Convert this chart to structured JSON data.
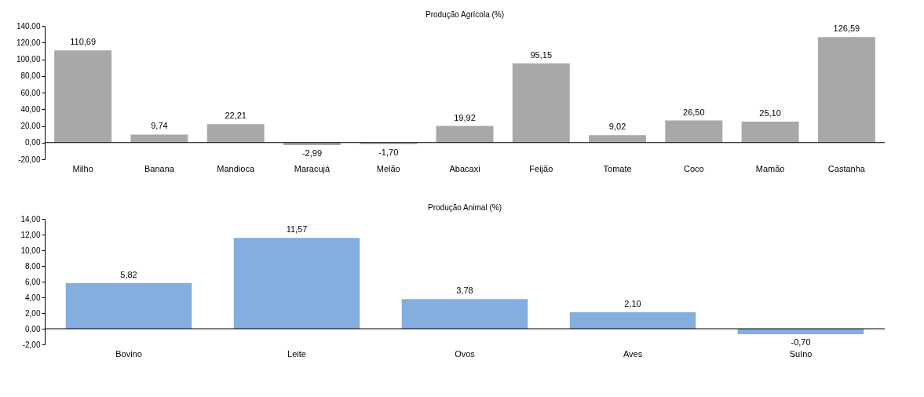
{
  "chart_data": [
    {
      "type": "bar",
      "title": "Produção Agrícola (%)",
      "categories": [
        "Milho",
        "Banana",
        "Mandioca",
        "Maracujá",
        "Melão",
        "Abacaxi",
        "Feijão",
        "Tomate",
        "Coco",
        "Mamão",
        "Castanha"
      ],
      "values": [
        110.69,
        9.74,
        22.21,
        -2.99,
        -1.7,
        19.92,
        95.15,
        9.02,
        26.5,
        25.1,
        126.59
      ],
      "value_labels": [
        "110,69",
        "9,74",
        "22,21",
        "-2,99",
        "-1,70",
        "19,92",
        "95,15",
        "9,02",
        "26,50",
        "25,10",
        "126,59"
      ],
      "color": "#a8a8a8",
      "ylim": [
        -20,
        140
      ],
      "yticks": [
        {
          "value": -20,
          "label": "-20,00"
        },
        {
          "value": 0,
          "label": "0,00"
        },
        {
          "value": 20,
          "label": "20,00"
        },
        {
          "value": 40,
          "label": "40,00"
        },
        {
          "value": 60,
          "label": "60,00"
        },
        {
          "value": 80,
          "label": "80,00"
        },
        {
          "value": 100,
          "label": "100,00"
        },
        {
          "value": 120,
          "label": "120,00"
        },
        {
          "value": 140,
          "label": "140,00"
        }
      ],
      "grid": false
    },
    {
      "type": "bar",
      "title": "Produção Animal (%)",
      "categories": [
        "Bovino",
        "Leite",
        "Ovos",
        "Aves",
        "Suíno"
      ],
      "values": [
        5.82,
        11.57,
        3.78,
        2.1,
        -0.7
      ],
      "value_labels": [
        "5,82",
        "11,57",
        "3,78",
        "2,10",
        "-0,70"
      ],
      "color": "#84ade0",
      "ylim": [
        -2,
        14
      ],
      "yticks": [
        {
          "value": -2,
          "label": "-2,00"
        },
        {
          "value": 0,
          "label": "0,00"
        },
        {
          "value": 2,
          "label": "2,00"
        },
        {
          "value": 4,
          "label": "4,00"
        },
        {
          "value": 6,
          "label": "6,00"
        },
        {
          "value": 8,
          "label": "8,00"
        },
        {
          "value": 10,
          "label": "10,00"
        },
        {
          "value": 12,
          "label": "12,00"
        },
        {
          "value": 14,
          "label": "14,00"
        }
      ],
      "grid": false
    }
  ]
}
